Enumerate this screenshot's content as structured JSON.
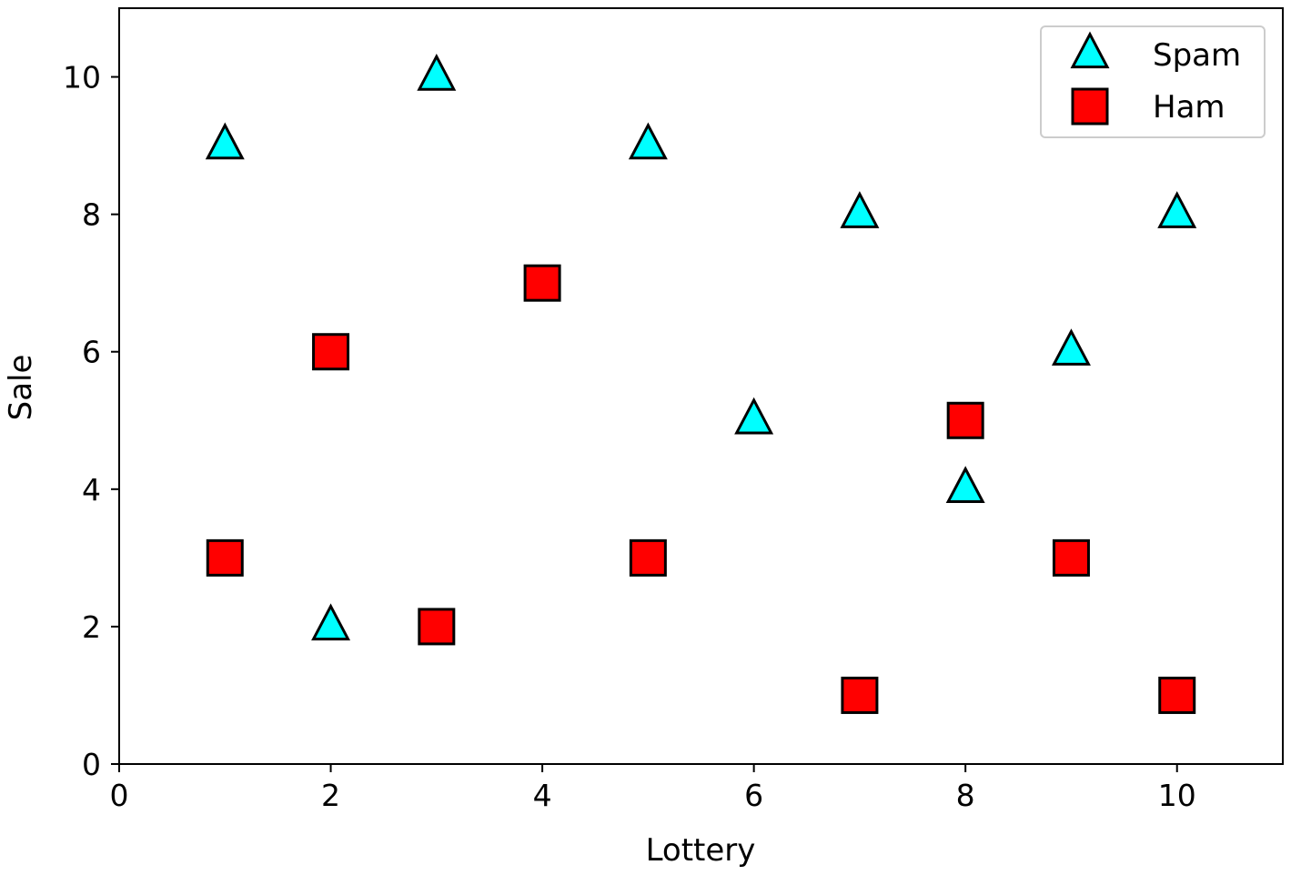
{
  "chart_data": {
    "type": "scatter",
    "xlabel": "Lottery",
    "ylabel": "Sale",
    "xlim": [
      0,
      11
    ],
    "ylim": [
      0,
      11
    ],
    "x_ticks": [
      0,
      2,
      4,
      6,
      8,
      10
    ],
    "y_ticks": [
      0,
      2,
      4,
      6,
      8,
      10
    ],
    "grid": false,
    "legend": "top-right",
    "series": [
      {
        "name": "Spam",
        "marker": "triangle",
        "color": "#00ffff",
        "points": [
          [
            1,
            9
          ],
          [
            3,
            10
          ],
          [
            5,
            9
          ],
          [
            7,
            8
          ],
          [
            10,
            8
          ],
          [
            9,
            6
          ],
          [
            6,
            5
          ],
          [
            8,
            4
          ],
          [
            2,
            2
          ]
        ]
      },
      {
        "name": "Ham",
        "marker": "square",
        "color": "#ff0000",
        "points": [
          [
            4,
            7
          ],
          [
            2,
            6
          ],
          [
            8,
            5
          ],
          [
            1,
            3
          ],
          [
            5,
            3
          ],
          [
            9,
            3
          ],
          [
            3,
            2
          ],
          [
            7,
            1
          ],
          [
            10,
            1
          ]
        ]
      }
    ]
  }
}
